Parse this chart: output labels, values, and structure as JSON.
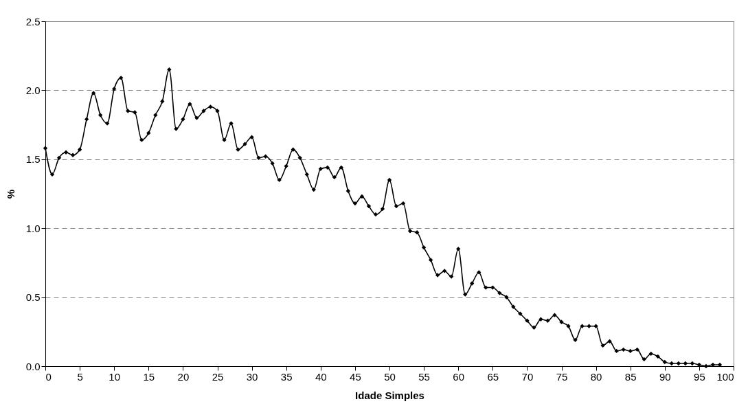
{
  "chart_data": {
    "type": "line",
    "xlabel": "Idade Simples",
    "ylabel": "%",
    "x": [
      0,
      1,
      2,
      3,
      4,
      5,
      6,
      7,
      8,
      9,
      10,
      11,
      12,
      13,
      14,
      15,
      16,
      17,
      18,
      19,
      20,
      21,
      22,
      23,
      24,
      25,
      26,
      27,
      28,
      29,
      30,
      31,
      32,
      33,
      34,
      35,
      36,
      37,
      38,
      39,
      40,
      41,
      42,
      43,
      44,
      45,
      46,
      47,
      48,
      49,
      50,
      51,
      52,
      53,
      54,
      55,
      56,
      57,
      58,
      59,
      60,
      61,
      62,
      63,
      64,
      65,
      66,
      67,
      68,
      69,
      70,
      71,
      72,
      73,
      74,
      75,
      76,
      77,
      78,
      79,
      80,
      81,
      82,
      83,
      84,
      85,
      86,
      87,
      88,
      89,
      90,
      91,
      92,
      93,
      94,
      95,
      96,
      97,
      98
    ],
    "series": [
      {
        "color": "#000000",
        "values": [
          1.58,
          1.39,
          1.51,
          1.55,
          1.53,
          1.57,
          1.79,
          1.98,
          1.82,
          1.76,
          2.01,
          2.09,
          1.85,
          1.84,
          1.64,
          1.69,
          1.82,
          1.92,
          2.15,
          1.72,
          1.79,
          1.9,
          1.8,
          1.85,
          1.88,
          1.85,
          1.64,
          1.76,
          1.57,
          1.61,
          1.66,
          1.51,
          1.52,
          1.47,
          1.35,
          1.45,
          1.57,
          1.51,
          1.39,
          1.28,
          1.43,
          1.44,
          1.37,
          1.44,
          1.27,
          1.18,
          1.23,
          1.16,
          1.1,
          1.14,
          1.35,
          1.16,
          1.18,
          0.98,
          0.97,
          0.86,
          0.77,
          0.66,
          0.69,
          0.65,
          0.85,
          0.52,
          0.6,
          0.68,
          0.57,
          0.57,
          0.53,
          0.5,
          0.43,
          0.38,
          0.33,
          0.28,
          0.34,
          0.33,
          0.37,
          0.32,
          0.29,
          0.19,
          0.29,
          0.29,
          0.29,
          0.15,
          0.18,
          0.11,
          0.12,
          0.11,
          0.12,
          0.05,
          0.09,
          0.07,
          0.03,
          0.02,
          0.02,
          0.02,
          0.02,
          0.01,
          0.0,
          0.01,
          0.01
        ]
      }
    ],
    "xlim": [
      0,
      100
    ],
    "xticks": [
      0,
      5,
      10,
      15,
      20,
      25,
      30,
      35,
      40,
      45,
      50,
      55,
      60,
      65,
      70,
      75,
      80,
      85,
      90,
      95,
      100
    ],
    "ylim": [
      0,
      2.5
    ],
    "yticks": [
      {
        "value": 0,
        "label": "0.0"
      },
      {
        "value": 0.5,
        "label": "0.5"
      },
      {
        "value": 1,
        "label": "1.0"
      },
      {
        "value": 1.5,
        "label": "1.5"
      },
      {
        "value": 2,
        "label": "2.0"
      },
      {
        "value": 2.5,
        "label": "2.5"
      }
    ],
    "grid": "y",
    "marker": "diamond",
    "line_style": "solid"
  }
}
